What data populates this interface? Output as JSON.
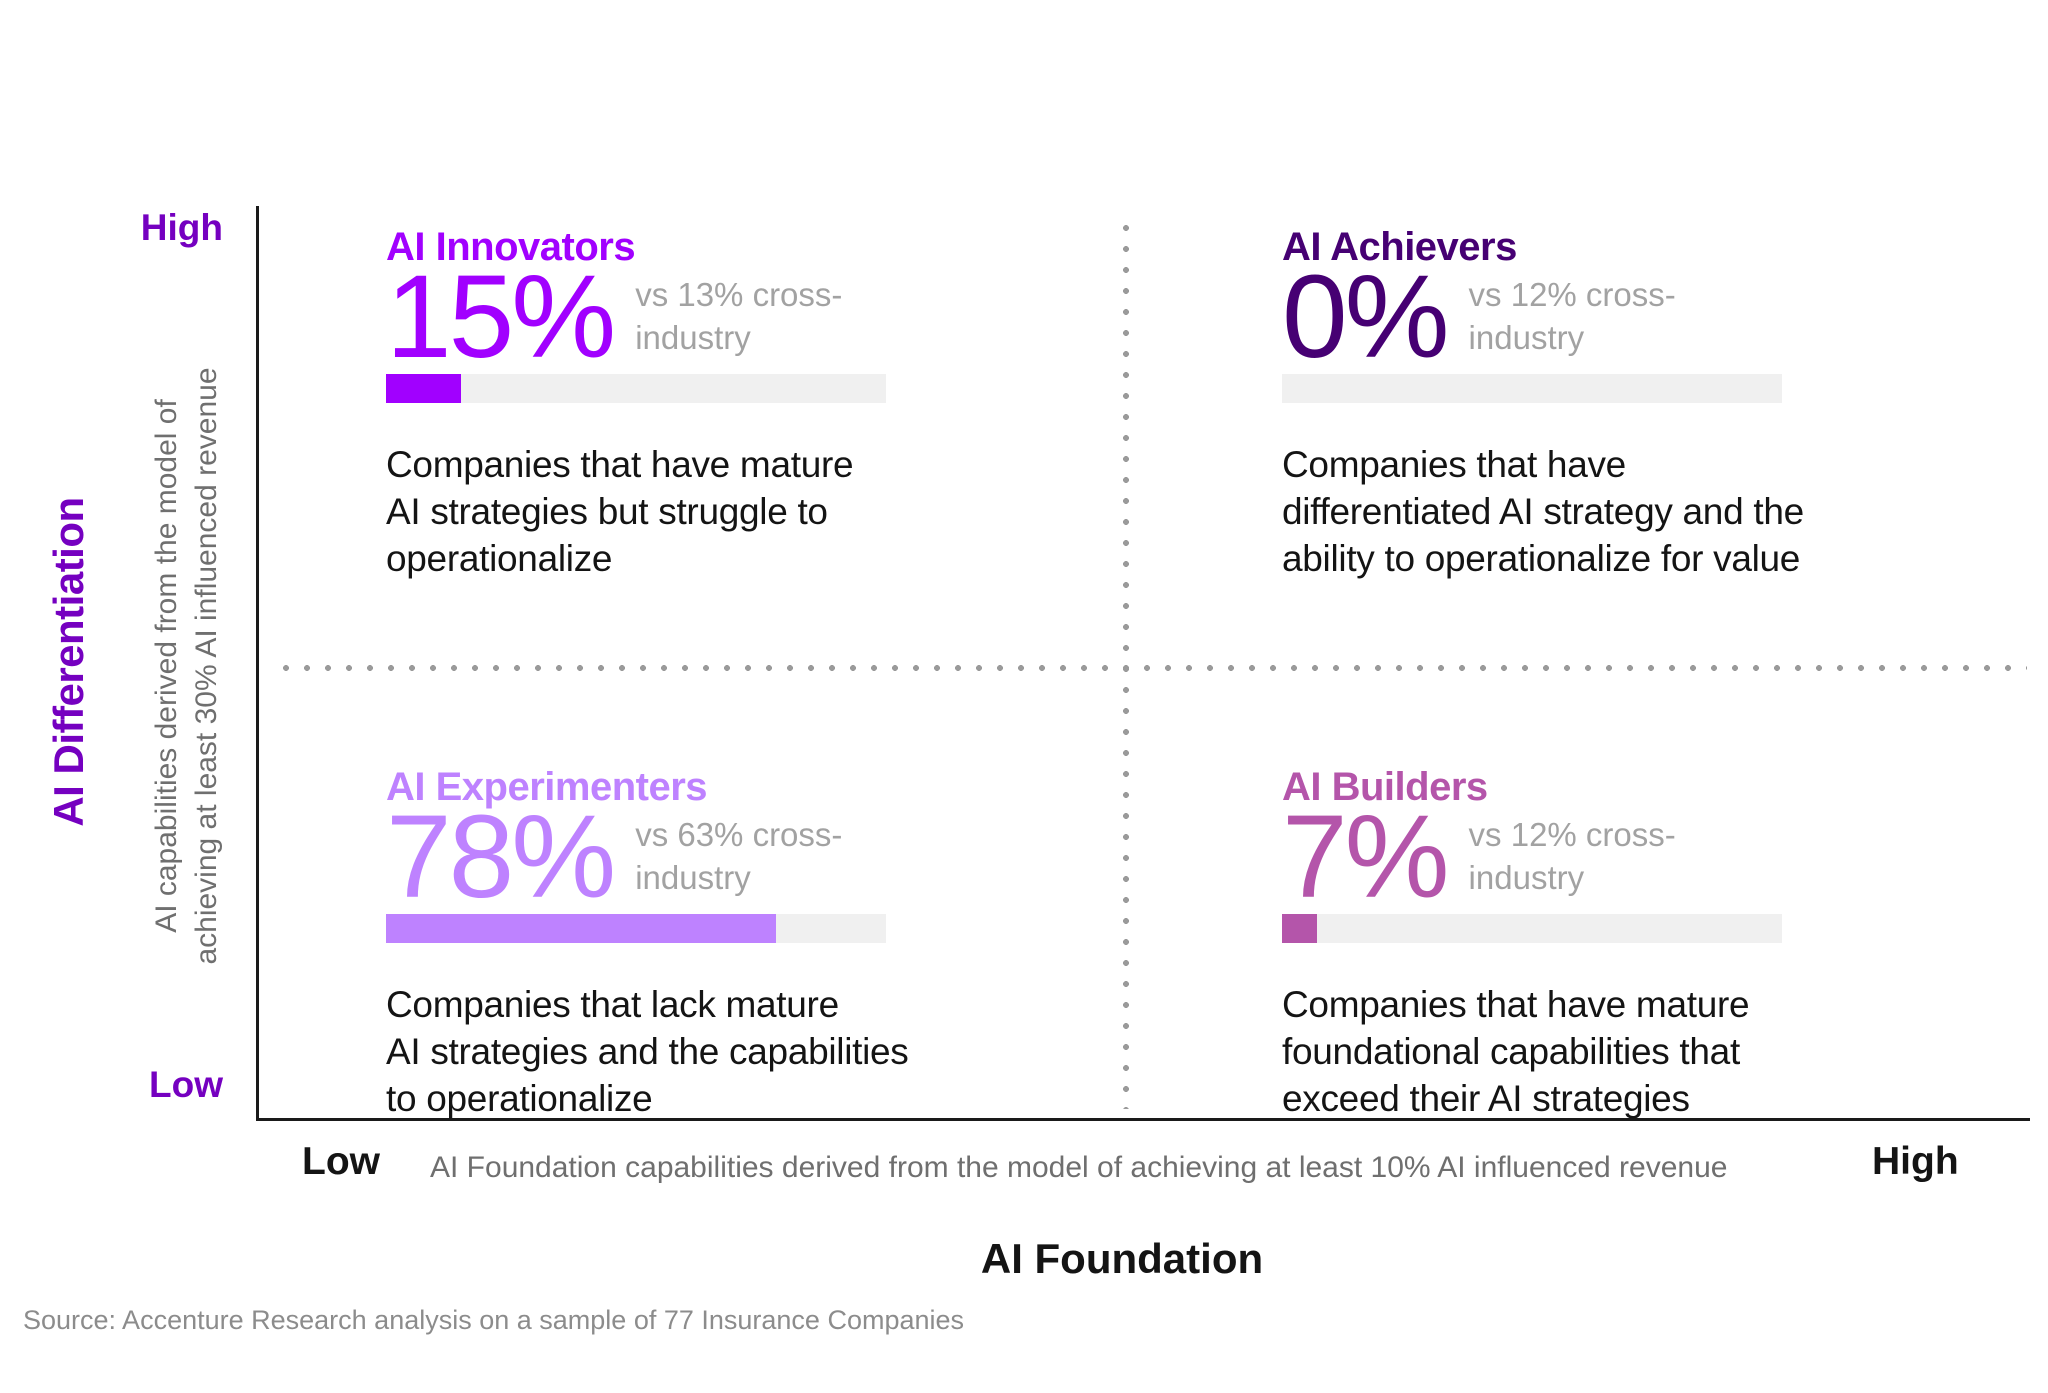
{
  "colors": {
    "axis_purple": "#7500C0",
    "ink": "#141414",
    "comparison_gray": "#a2a2a2",
    "axis_sublabel_gray": "#6f6f6f",
    "bar_track": "#f0f0f0",
    "dotted_line_gray": "#9a9a9a",
    "source_gray": "#8c8c8c"
  },
  "y_axis": {
    "title": "AI Differentiation",
    "sublabel_line1": "AI capabilities derived from the model of",
    "sublabel_line2": "achieving at least 30% AI influenced revenue",
    "high_label": "High",
    "low_label": "Low"
  },
  "x_axis": {
    "title": "AI Foundation",
    "sublabel": "AI Foundation capabilities derived from the model of achieving at least 10% AI influenced revenue",
    "low_label": "Low",
    "high_label": "High"
  },
  "source": "Source: Accenture Research analysis on a sample of 77 Insurance Companies",
  "chart_data": {
    "type": "bar",
    "layout": "2x2-quadrant",
    "x_axis_label": "AI Foundation (Low to High)",
    "y_axis_label": "AI Differentiation (Low to High)",
    "bar_range_pct": [
      0,
      100
    ],
    "quadrants": [
      {
        "position": "top-left",
        "title": "AI Innovators",
        "value_pct": 15,
        "value_label": "15%",
        "cross_industry_pct": 13,
        "comparison_lines": [
          "vs 13% cross-",
          "industry"
        ],
        "description_lines": [
          "Companies that have mature",
          "AI strategies but struggle to",
          "operationalize"
        ],
        "color": "#A100FF"
      },
      {
        "position": "top-right",
        "title": "AI Achievers",
        "value_pct": 0,
        "value_label": "0%",
        "cross_industry_pct": 12,
        "comparison_lines": [
          "vs 12% cross-",
          "industry"
        ],
        "description_lines": [
          "Companies that have",
          "differentiated AI strategy and the",
          "ability to operationalize for value"
        ],
        "color": "#460073"
      },
      {
        "position": "bottom-left",
        "title": "AI Experimenters",
        "value_pct": 78,
        "value_label": "78%",
        "cross_industry_pct": 63,
        "comparison_lines": [
          "vs 63% cross-",
          "industry"
        ],
        "description_lines": [
          "Companies that lack mature",
          "AI strategies and the capabilities",
          "to operationalize"
        ],
        "color": "#BE82FF"
      },
      {
        "position": "bottom-right",
        "title": "AI Builders",
        "value_pct": 7,
        "value_label": "7%",
        "cross_industry_pct": 12,
        "comparison_lines": [
          "vs 12% cross-",
          "industry"
        ],
        "description_lines": [
          "Companies that have mature",
          "foundational capabilities that",
          "exceed their AI strategies"
        ],
        "color": "#B455AA"
      }
    ]
  }
}
